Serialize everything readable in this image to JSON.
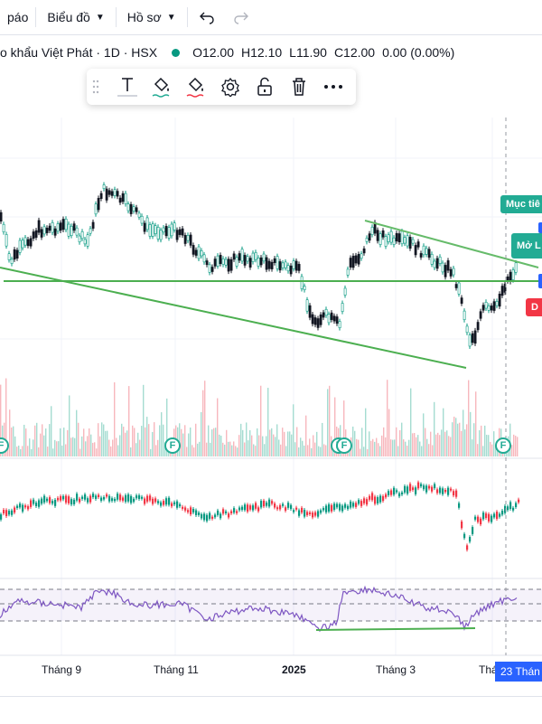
{
  "topbar": {
    "item1": "páo",
    "item2": "Biểu đồ",
    "item3": "Hồ sơ",
    "undo_icon": "undo-icon",
    "redo_icon": "redo-icon"
  },
  "legend": {
    "title": "o khẩu Việt Phát · 1D · HSX",
    "open": "O12.00",
    "high": "H12.10",
    "low": "L11.90",
    "close": "C12.00",
    "change": "0.00 (0.00%)"
  },
  "toolbar": {
    "icons": [
      "drag-handle-icon",
      "text-icon",
      "fill-bucket-icon",
      "line-color-icon",
      "gear-icon",
      "unlock-icon",
      "trash-icon",
      "more-icon"
    ]
  },
  "labels": {
    "target": "Mục tiê",
    "open_long": "Mở L",
    "stop": "D"
  },
  "xaxis": {
    "sep": "Tháng 9",
    "nov": "Tháng 11",
    "y2025": "2025",
    "mar": "Tháng 3",
    "may": "Thá",
    "crosshair_date": "23 Thán"
  },
  "events": {
    "marker": "F"
  },
  "colors": {
    "up": "#089981",
    "down": "#f23645",
    "trendline": "#4caf50",
    "rsi": "#7e57c2",
    "crosshair": "#2962ff"
  }
}
